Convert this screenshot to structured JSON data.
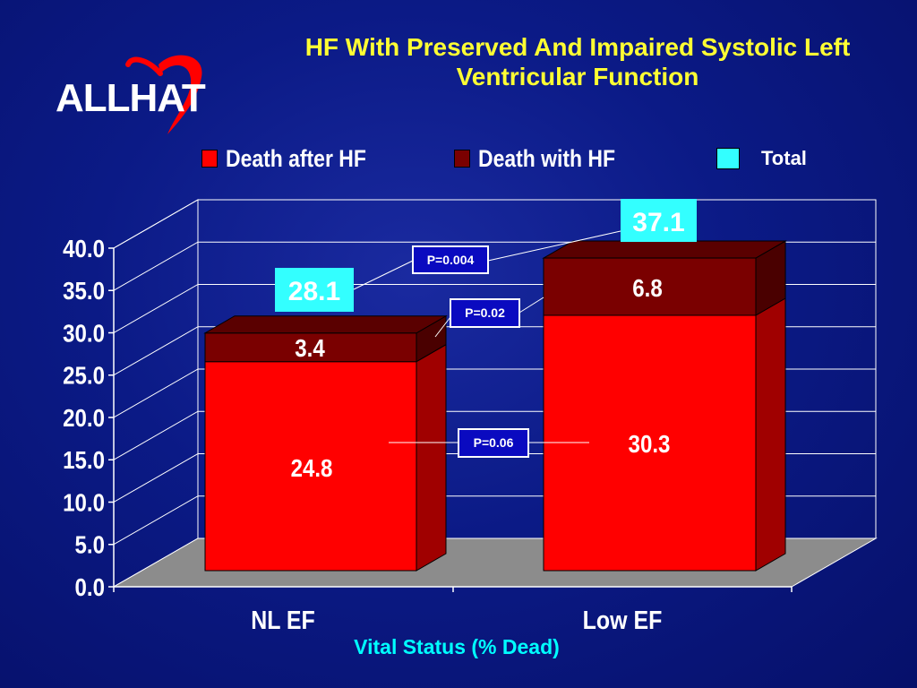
{
  "title": "HF With Preserved And Impaired Systolic Left Ventricular Function",
  "logo": {
    "text": "ALLHAT"
  },
  "legend": [
    {
      "label": "Death after HF",
      "color": "#ff0000"
    },
    {
      "label": "Death with HF",
      "color": "#7a0000"
    },
    {
      "label": "Total",
      "color": "#33ffff"
    }
  ],
  "chart_data": {
    "type": "bar",
    "stacked": true,
    "categories": [
      "NL EF",
      "Low EF"
    ],
    "series": [
      {
        "name": "Death after HF",
        "values": [
          24.8,
          30.3
        ],
        "color": "#ff0000"
      },
      {
        "name": "Death with HF",
        "values": [
          3.4,
          6.8
        ],
        "color": "#7a0000"
      }
    ],
    "totals": [
      28.1,
      37.1
    ],
    "total_color": "#33ffff",
    "ylim": [
      0,
      40
    ],
    "yticks": [
      "0.0",
      "5.0",
      "10.0",
      "15.0",
      "20.0",
      "25.0",
      "30.0",
      "35.0",
      "40.0"
    ],
    "xlabel": "Vital Status (% Dead)",
    "grid": true,
    "annotations": [
      "P=0.004",
      "P=0.02",
      "P=0.06"
    ]
  }
}
